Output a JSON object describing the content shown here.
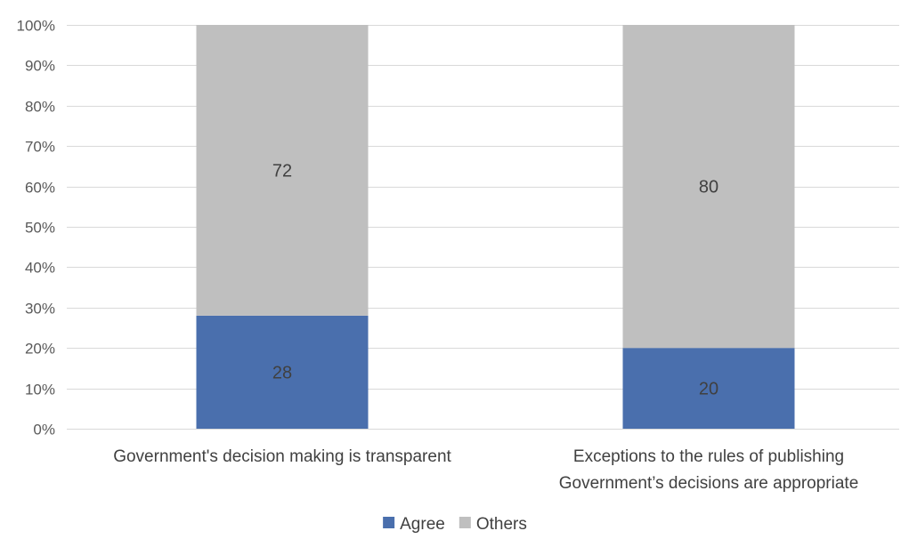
{
  "chart_data": {
    "type": "bar",
    "stacked": true,
    "categories": [
      [
        "Government's decision making is transparent"
      ],
      [
        "Exceptions to the rules of publishing",
        "Government’s decisions are appropriate"
      ]
    ],
    "series": [
      {
        "name": "Agree",
        "values": [
          28,
          20
        ],
        "color": "#4a6fad"
      },
      {
        "name": "Others",
        "values": [
          72,
          80
        ],
        "color": "#bfbfbf"
      }
    ],
    "ylim": [
      0,
      100
    ],
    "yticks": [
      0,
      10,
      20,
      30,
      40,
      50,
      60,
      70,
      80,
      90,
      100
    ],
    "ytick_suffix": "%",
    "grid": true,
    "legend_position": "bottom",
    "title": "",
    "xlabel": "",
    "ylabel": ""
  }
}
